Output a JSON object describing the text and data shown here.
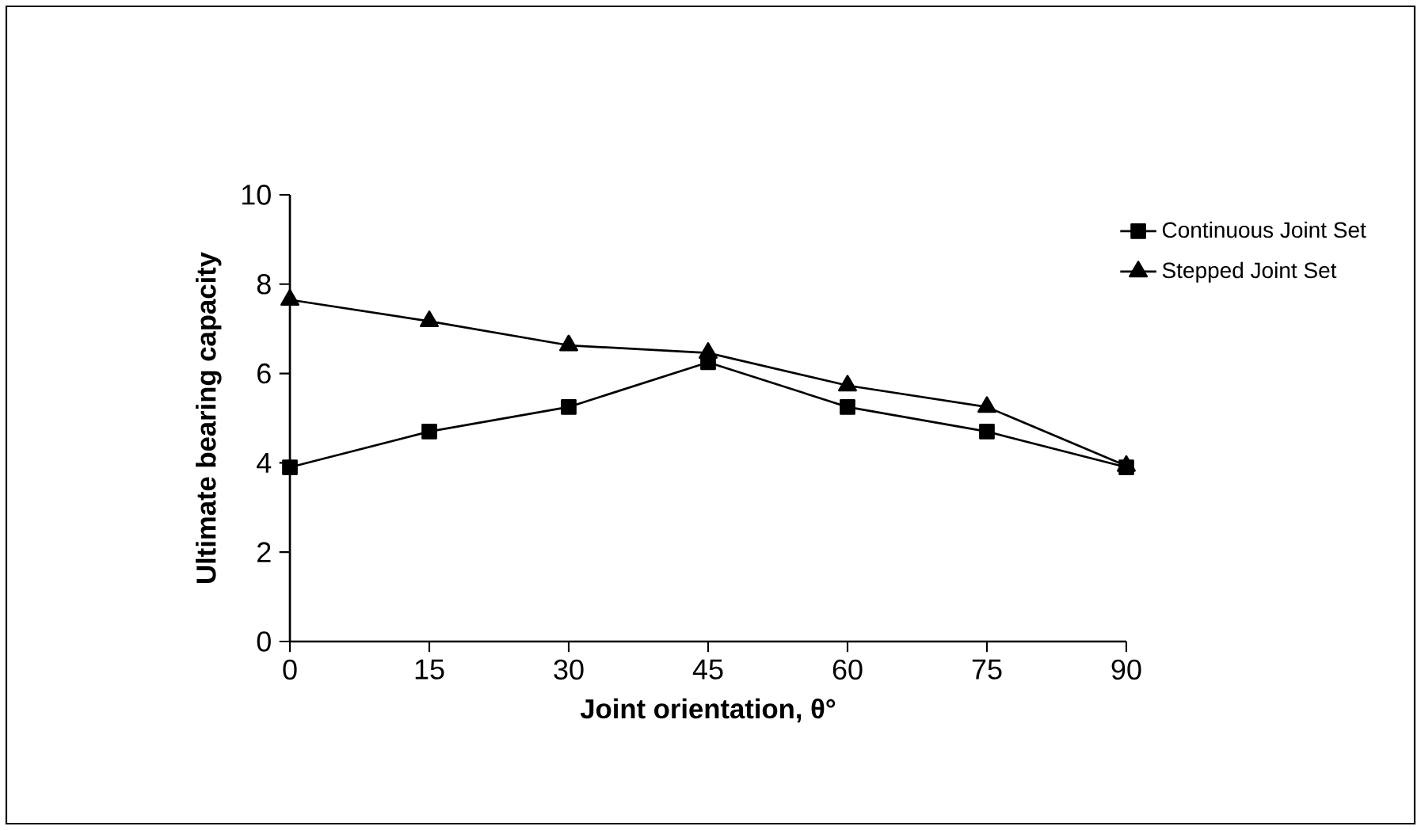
{
  "chart_data": {
    "type": "line",
    "xlabel": "Joint orientation, θ°",
    "ylabel": "Ultimate bearing capacity",
    "x": [
      0,
      15,
      30,
      45,
      60,
      75,
      90
    ],
    "series": [
      {
        "name": "Continuous Joint Set",
        "color": "#000000",
        "marker": "square",
        "values": [
          3.9,
          4.7,
          5.25,
          6.25,
          5.25,
          4.7,
          3.9
        ]
      },
      {
        "name": "Stepped Joint Set",
        "color": "#000000",
        "marker": "triangle",
        "values": [
          7.65,
          7.17,
          6.63,
          6.46,
          5.73,
          5.25,
          3.93
        ]
      }
    ],
    "xlim": [
      0,
      90
    ],
    "xticks": [
      0,
      15,
      30,
      45,
      60,
      75,
      90
    ],
    "ylim": [
      0,
      10
    ],
    "yticks": [
      0,
      2,
      4,
      6,
      8,
      10
    ],
    "grid": false,
    "legend": "top right",
    "line_style": "solid"
  }
}
